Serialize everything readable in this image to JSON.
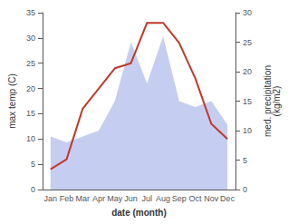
{
  "chart_data": {
    "type": "line",
    "xlabel": "date (month)",
    "ylabel": "max temp (C)",
    "y2label": "med. precipitation\n(kg/m2)",
    "categories": [
      "Jan",
      "Feb",
      "Mar",
      "Apr",
      "May",
      "Jun",
      "Jul",
      "Aug",
      "Sep",
      "Oct",
      "Nov",
      "Dec"
    ],
    "series": [
      {
        "type": "area",
        "color": "#c5cef0",
        "axis": "y2",
        "values": [
          9,
          8,
          9,
          10,
          15,
          25,
          18,
          26,
          15,
          14,
          15,
          11
        ]
      },
      {
        "type": "line",
        "color": "#c0392b",
        "values": [
          4,
          6,
          16,
          20,
          24,
          25,
          33,
          33,
          29,
          22,
          13,
          10
        ]
      }
    ],
    "ylim": [
      0,
      35
    ],
    "yticks": [
      0,
      5,
      10,
      15,
      20,
      25,
      30,
      35
    ],
    "y2lim": [
      0,
      30
    ],
    "y2ticks": [
      0,
      5,
      10,
      15,
      20,
      25,
      30
    ],
    "grid": false
  }
}
